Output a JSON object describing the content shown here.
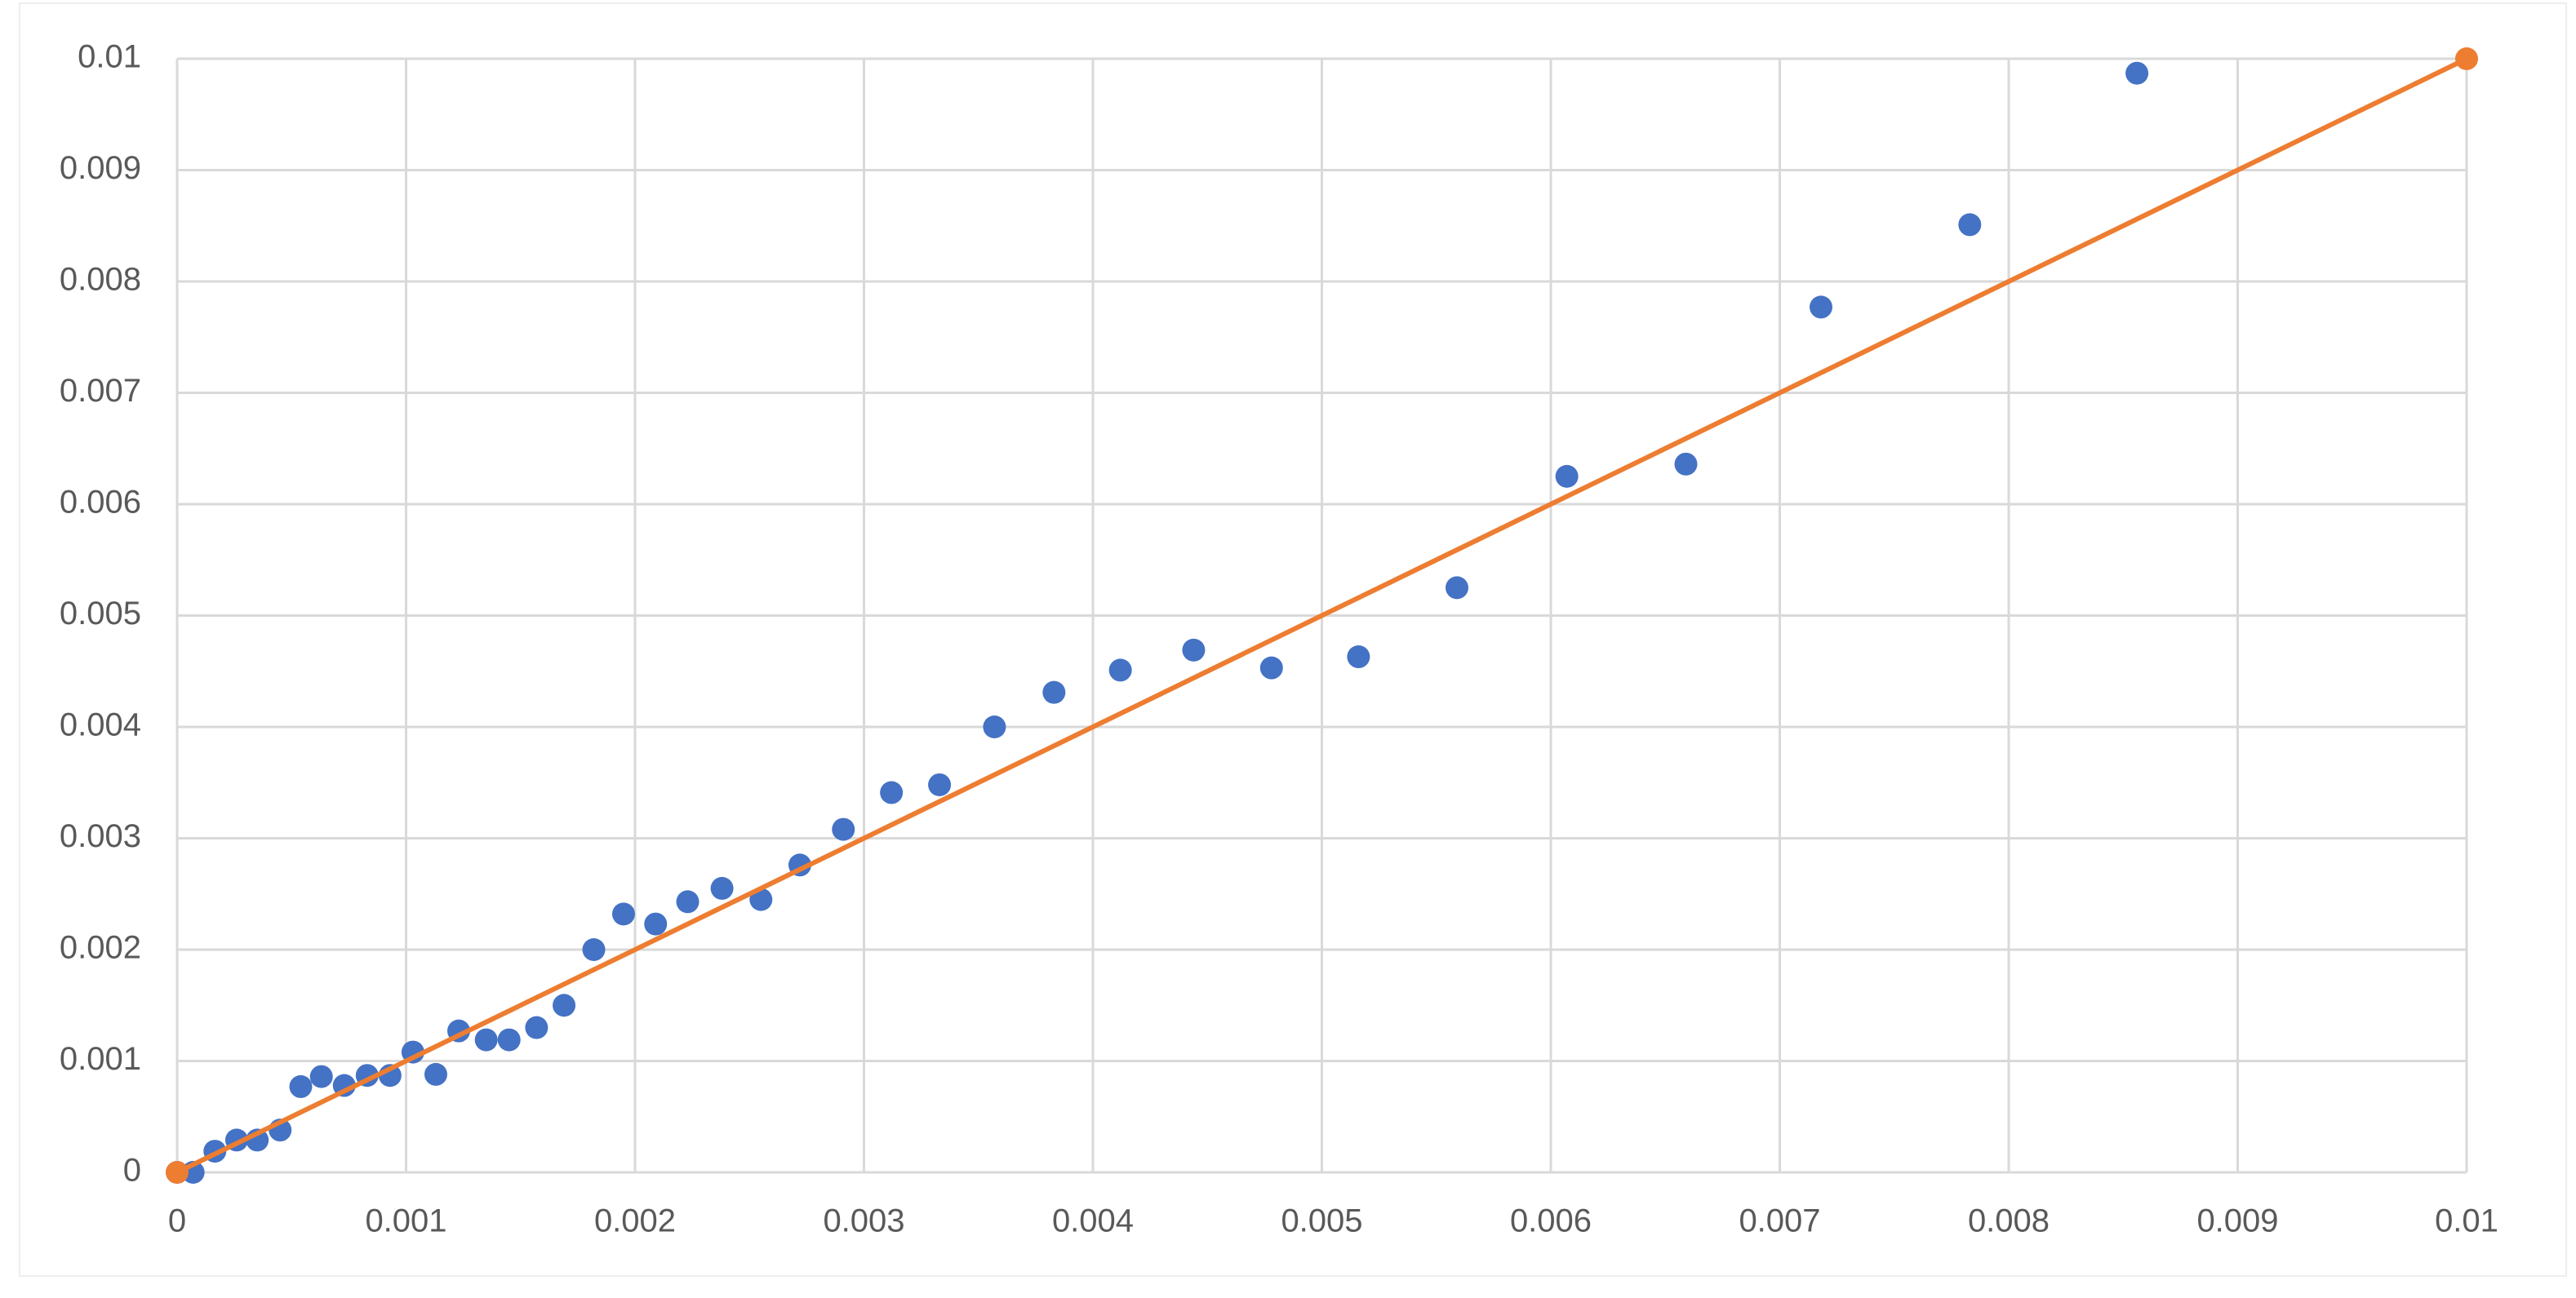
{
  "chart_data": {
    "type": "scatter",
    "series": [
      {
        "color": "#4472c4",
        "mode": "markers",
        "x": [
          0,
          7e-05,
          0.000165,
          0.00026,
          0.00035,
          0.00045,
          0.00054,
          0.00063,
          0.00073,
          0.00083,
          0.00093,
          0.00103,
          0.00113,
          0.00123,
          0.00135,
          0.00145,
          0.00157,
          0.00169,
          0.00182,
          0.00195,
          0.00209,
          0.00223,
          0.00238,
          0.00255,
          0.00272,
          0.00291,
          0.00312,
          0.00333,
          0.00357,
          0.00383,
          0.00412,
          0.00444,
          0.00478,
          0.00516,
          0.00559,
          0.00607,
          0.00659,
          0.00718,
          0.00783,
          0.00856
        ],
        "values": [
          0,
          0,
          0.00019,
          0.00029,
          0.00029,
          0.00038,
          0.00077,
          0.00086,
          0.00078,
          0.00087,
          0.00087,
          0.00108,
          0.00088,
          0.00127,
          0.00119,
          0.00119,
          0.0013,
          0.0015,
          0.002,
          0.00232,
          0.00223,
          0.00243,
          0.00255,
          0.00245,
          0.00276,
          0.00308,
          0.00341,
          0.00348,
          0.004,
          0.00431,
          0.00451,
          0.00469,
          0.00453,
          0.00463,
          0.00525,
          0.00625,
          0.00636,
          0.00777,
          0.00851,
          0.00987
        ]
      },
      {
        "color": "#ed7d31",
        "mode": "lines+markers",
        "x": [
          0,
          0.01
        ],
        "values": [
          0,
          0.01
        ]
      }
    ],
    "xlim": [
      0,
      0.01
    ],
    "xticks": [
      0,
      0.001,
      0.002,
      0.003,
      0.004,
      0.005,
      0.006,
      0.007,
      0.008,
      0.009,
      0.01
    ],
    "ylim": [
      0,
      0.01
    ],
    "yticks": [
      0,
      0.001,
      0.002,
      0.003,
      0.004,
      0.005,
      0.006,
      0.007,
      0.008,
      0.009,
      0.01
    ],
    "grid": true
  }
}
